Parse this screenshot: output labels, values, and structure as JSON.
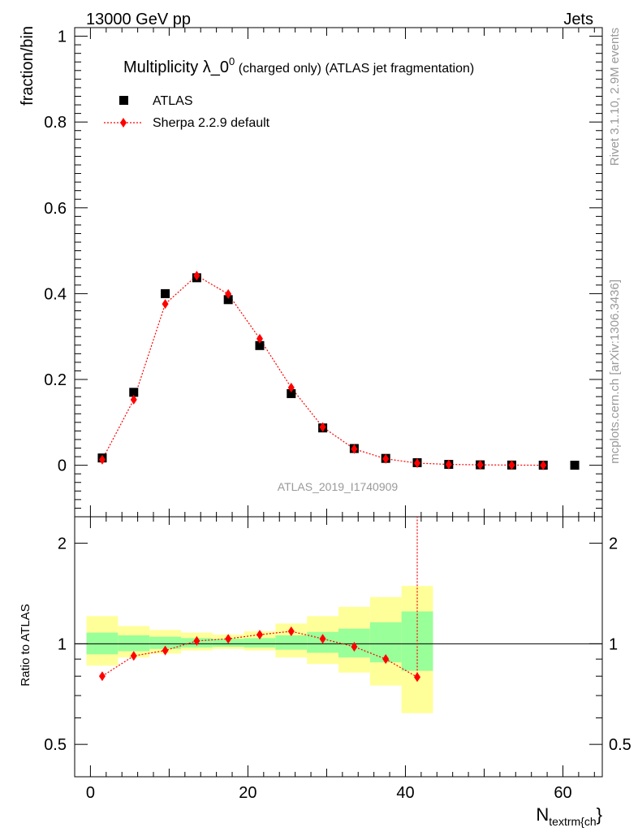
{
  "header": {
    "left": "13000 GeV pp",
    "right": "Jets"
  },
  "side": {
    "rivet": "Rivet 3.1.10,  2.9M events",
    "mcplots": "mcplots.cern.ch [arXiv:1306.3436]"
  },
  "watermark": "ATLAS_2019_I1740909",
  "colors": {
    "data": "#000000",
    "mc": "#ff0000",
    "band_inner": "#99ff99",
    "band_outer": "#ffff99"
  },
  "chart_data": [
    {
      "type": "scatter",
      "title": "Multiplicity λ_0",
      "title_sup": "0",
      "title_rest": " (charged only) (ATLAS jet fragmentation)",
      "ylabel": "fraction/bin",
      "xlim": [
        -2,
        65
      ],
      "ylim": [
        -0.12,
        1.02
      ],
      "yticks": [
        0,
        0.2,
        0.4,
        0.6,
        0.8,
        1
      ],
      "ytick_labels": [
        "0",
        "0.2",
        "0.4",
        "0.6",
        "0.8",
        "1"
      ],
      "legend_position": "top-left",
      "series": [
        {
          "name": "ATLAS",
          "marker": "square",
          "x": [
            1.5,
            5.5,
            9.5,
            13.5,
            17.5,
            21.5,
            25.5,
            29.5,
            33.5,
            37.5,
            41.5,
            45.5,
            49.5,
            53.5,
            57.5,
            61.5
          ],
          "y": [
            0.017,
            0.17,
            0.4,
            0.437,
            0.386,
            0.279,
            0.167,
            0.087,
            0.039,
            0.016,
            0.006,
            0.002,
            0.001,
            0.0005,
            0.0002,
            0.0001
          ]
        },
        {
          "name": "Sherpa 2.2.9 default",
          "marker": "diamond",
          "line": "dotted",
          "x": [
            1.5,
            5.5,
            9.5,
            13.5,
            17.5,
            21.5,
            25.5,
            29.5,
            33.5,
            37.5,
            41.5,
            45.5,
            49.5,
            53.5,
            57.5
          ],
          "y": [
            0.013,
            0.153,
            0.376,
            0.442,
            0.399,
            0.295,
            0.181,
            0.089,
            0.038,
            0.015,
            0.005,
            0.002,
            0.001,
            0.0004,
            0.0001
          ]
        }
      ]
    },
    {
      "type": "scatter",
      "ylabel": "Ratio to ATLAS",
      "xlabel_main": "N",
      "xlabel_sub": "textrm{ch",
      "xlabel_tail": "}",
      "xlim": [
        -2,
        65
      ],
      "ylim": [
        0.4,
        2.4
      ],
      "yscale": "log",
      "xticks": [
        0,
        20,
        40,
        60
      ],
      "xtick_labels": [
        "0",
        "20",
        "40",
        "60"
      ],
      "yticks": [
        0.5,
        1,
        2
      ],
      "ytick_labels": [
        "0.5",
        "1",
        "2"
      ],
      "band": {
        "edges": [
          -0.5,
          3.5,
          7.5,
          11.5,
          15.5,
          19.5,
          23.5,
          27.5,
          31.5,
          35.5,
          39.5,
          43.5
        ],
        "inner_low": [
          0.93,
          0.95,
          0.965,
          0.975,
          0.98,
          0.975,
          0.96,
          0.94,
          0.91,
          0.88,
          0.83
        ],
        "inner_high": [
          1.08,
          1.06,
          1.05,
          1.04,
          1.035,
          1.04,
          1.06,
          1.085,
          1.11,
          1.16,
          1.25
        ],
        "outer_low": [
          0.86,
          0.91,
          0.935,
          0.955,
          0.965,
          0.955,
          0.91,
          0.87,
          0.82,
          0.75,
          0.62
        ],
        "outer_high": [
          1.21,
          1.13,
          1.1,
          1.08,
          1.065,
          1.09,
          1.15,
          1.21,
          1.29,
          1.38,
          1.49
        ]
      },
      "series": [
        {
          "name": "Sherpa 2.2.9 default",
          "marker": "diamond",
          "line": "dotted",
          "x": [
            1.5,
            5.5,
            9.5,
            13.5,
            17.5,
            21.5,
            25.5,
            29.5,
            33.5,
            37.5,
            41.5
          ],
          "y": [
            0.8,
            0.92,
            0.955,
            1.02,
            1.035,
            1.065,
            1.09,
            1.035,
            0.98,
            0.9,
            0.795
          ],
          "error_up_top": [
            41.5,
            2.4
          ]
        }
      ]
    }
  ]
}
